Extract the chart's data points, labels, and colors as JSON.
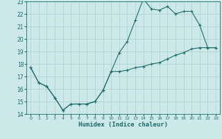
{
  "xlabel": "Humidex (Indice chaleur)",
  "bg_color": "#cce8e8",
  "grid_color": "#aacfcf",
  "line_color": "#1a6b6b",
  "xlim": [
    -0.5,
    23.5
  ],
  "ylim": [
    14,
    23
  ],
  "yticks": [
    14,
    15,
    16,
    17,
    18,
    19,
    20,
    21,
    22,
    23
  ],
  "xticks": [
    0,
    1,
    2,
    3,
    4,
    5,
    6,
    7,
    8,
    9,
    10,
    11,
    12,
    13,
    14,
    15,
    16,
    17,
    18,
    19,
    20,
    21,
    22,
    23
  ],
  "line1_x": [
    0,
    1,
    2,
    3,
    4,
    5,
    6,
    7,
    8,
    9,
    10,
    11,
    12,
    13,
    14,
    15,
    16,
    17,
    18,
    19,
    20,
    21,
    22,
    23
  ],
  "line1_y": [
    17.7,
    16.5,
    16.2,
    15.3,
    14.3,
    14.8,
    14.8,
    14.8,
    15.0,
    15.9,
    17.4,
    18.9,
    19.8,
    21.5,
    23.2,
    22.4,
    22.3,
    22.6,
    22.0,
    22.2,
    22.2,
    21.1,
    19.3,
    19.3
  ],
  "line2_x": [
    0,
    1,
    2,
    3,
    4,
    5,
    6,
    7,
    8,
    9,
    10,
    11,
    12,
    13,
    14,
    15,
    16,
    17,
    18,
    19,
    20,
    21,
    22,
    23
  ],
  "line2_y": [
    17.7,
    16.5,
    16.2,
    15.3,
    14.3,
    14.8,
    14.8,
    14.8,
    15.0,
    15.9,
    17.4,
    17.4,
    17.5,
    17.7,
    17.8,
    18.0,
    18.1,
    18.4,
    18.7,
    18.9,
    19.2,
    19.3,
    19.3,
    19.3
  ],
  "xlabel_fontsize": 6.5,
  "ylabel_fontsize": 5.5,
  "xtick_fontsize": 4.5,
  "ytick_fontsize": 5.5,
  "linewidth": 0.8,
  "markersize": 3.5
}
